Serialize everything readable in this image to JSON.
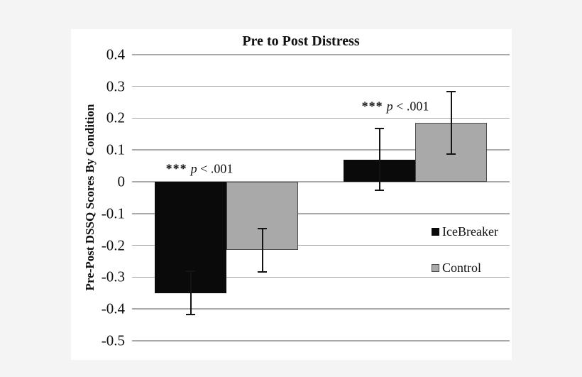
{
  "figure": {
    "title": "Pre to Post Distress"
  },
  "y_axis": {
    "label": "Pre-Post DSSQ Scores By Condition",
    "tick_labels": [
      "0.4",
      "0.3",
      "0.2",
      "0.1",
      "0",
      "-0.1",
      "-0.2",
      "-0.3",
      "-0.4",
      "-0.5"
    ]
  },
  "legend": {
    "items": [
      {
        "label": "IceBreaker",
        "color": "#0a0a0a",
        "border": "#0a0a0a"
      },
      {
        "label": "Control",
        "color": "#a9a9a9",
        "border": "#4a4a4a"
      }
    ]
  },
  "annotations": [
    {
      "stars": "***",
      "p": "p",
      "rest": " < .001"
    },
    {
      "stars": "***",
      "p": "p",
      "rest": " < .001"
    }
  ],
  "chart_data": {
    "type": "bar",
    "title": "Pre to Post Distress",
    "xlabel": "",
    "ylabel": "Pre-Post DSSQ Scores By Condition",
    "categories": [
      "",
      ""
    ],
    "series": [
      {
        "name": "IceBreaker",
        "color": "#0a0a0a",
        "border_color": "#0a0a0a",
        "values": [
          -0.35,
          0.07
        ],
        "error": [
          0.07,
          0.1
        ]
      },
      {
        "name": "Control",
        "color": "#a9a9a9",
        "border_color": "#4a4a4a",
        "values": [
          -0.215,
          0.185
        ],
        "error": [
          0.07,
          0.1
        ]
      }
    ],
    "ylim": [
      -0.5,
      0.4
    ],
    "ytick_step": 0.1,
    "grid": "horizontal",
    "legend_position": "right",
    "annotations": [
      {
        "text": "*** p < .001",
        "group_index": 0
      },
      {
        "text": "*** p < .001",
        "group_index": 1
      }
    ]
  }
}
